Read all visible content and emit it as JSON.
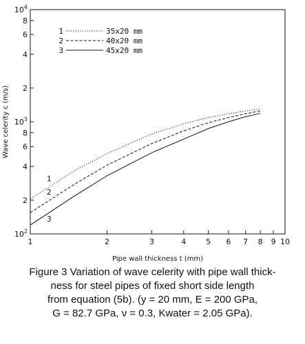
{
  "chart_data": {
    "type": "line",
    "xscale": "log",
    "yscale": "log",
    "xlim": [
      1,
      10
    ],
    "ylim": [
      100,
      10000
    ],
    "xlabel": "Pipe wall thickness t (mm)",
    "ylabel": "Wave celerity c (m/s)",
    "grid": false,
    "legend_position": "top-left",
    "x_ticks": [
      "1",
      "2",
      "3",
      "4",
      "5",
      "6",
      "7",
      "8",
      "9",
      "10"
    ],
    "y_ticks": [
      {
        "value": 100,
        "base": "10",
        "exp": "2"
      },
      {
        "value": 200,
        "label": "2"
      },
      {
        "value": 400,
        "label": "4"
      },
      {
        "value": 600,
        "label": "6"
      },
      {
        "value": 800,
        "label": "8"
      },
      {
        "value": 1000,
        "base": "10",
        "exp": "3"
      },
      {
        "value": 2000,
        "label": "2"
      },
      {
        "value": 4000,
        "label": "4"
      },
      {
        "value": 6000,
        "label": "6"
      },
      {
        "value": 8000,
        "label": "8"
      },
      {
        "value": 10000,
        "base": "10",
        "exp": "4"
      }
    ],
    "series": [
      {
        "name": "35x20 mm",
        "number": "1",
        "style": "dotted",
        "x": [
          1,
          1.5,
          2,
          3,
          4,
          5,
          6,
          7,
          8
        ],
        "y": [
          205,
          370,
          520,
          780,
          960,
          1090,
          1180,
          1250,
          1300
        ]
      },
      {
        "name": "40x20 mm",
        "number": "2",
        "style": "dashed",
        "x": [
          1,
          1.5,
          2,
          3,
          4,
          5,
          6,
          7,
          8
        ],
        "y": [
          155,
          280,
          410,
          640,
          830,
          980,
          1090,
          1180,
          1250
        ]
      },
      {
        "name": "45x20 mm",
        "number": "3",
        "style": "solid",
        "x": [
          1,
          1.5,
          2,
          3,
          4,
          5,
          6,
          7,
          8
        ],
        "y": [
          120,
          220,
          330,
          530,
          700,
          870,
          1000,
          1110,
          1190
        ]
      }
    ]
  },
  "caption": {
    "line1": "Figure 3 Variation of wave celerity with pipe wall thick-",
    "line2": "ness for steel pipes of fixed short side length",
    "line3": "from equation (5b). (y = 20 mm, E = 200 GPa,",
    "line4": "G = 82.7 GPa, ν = 0.3, Kwater = 2.05 GPa)."
  }
}
